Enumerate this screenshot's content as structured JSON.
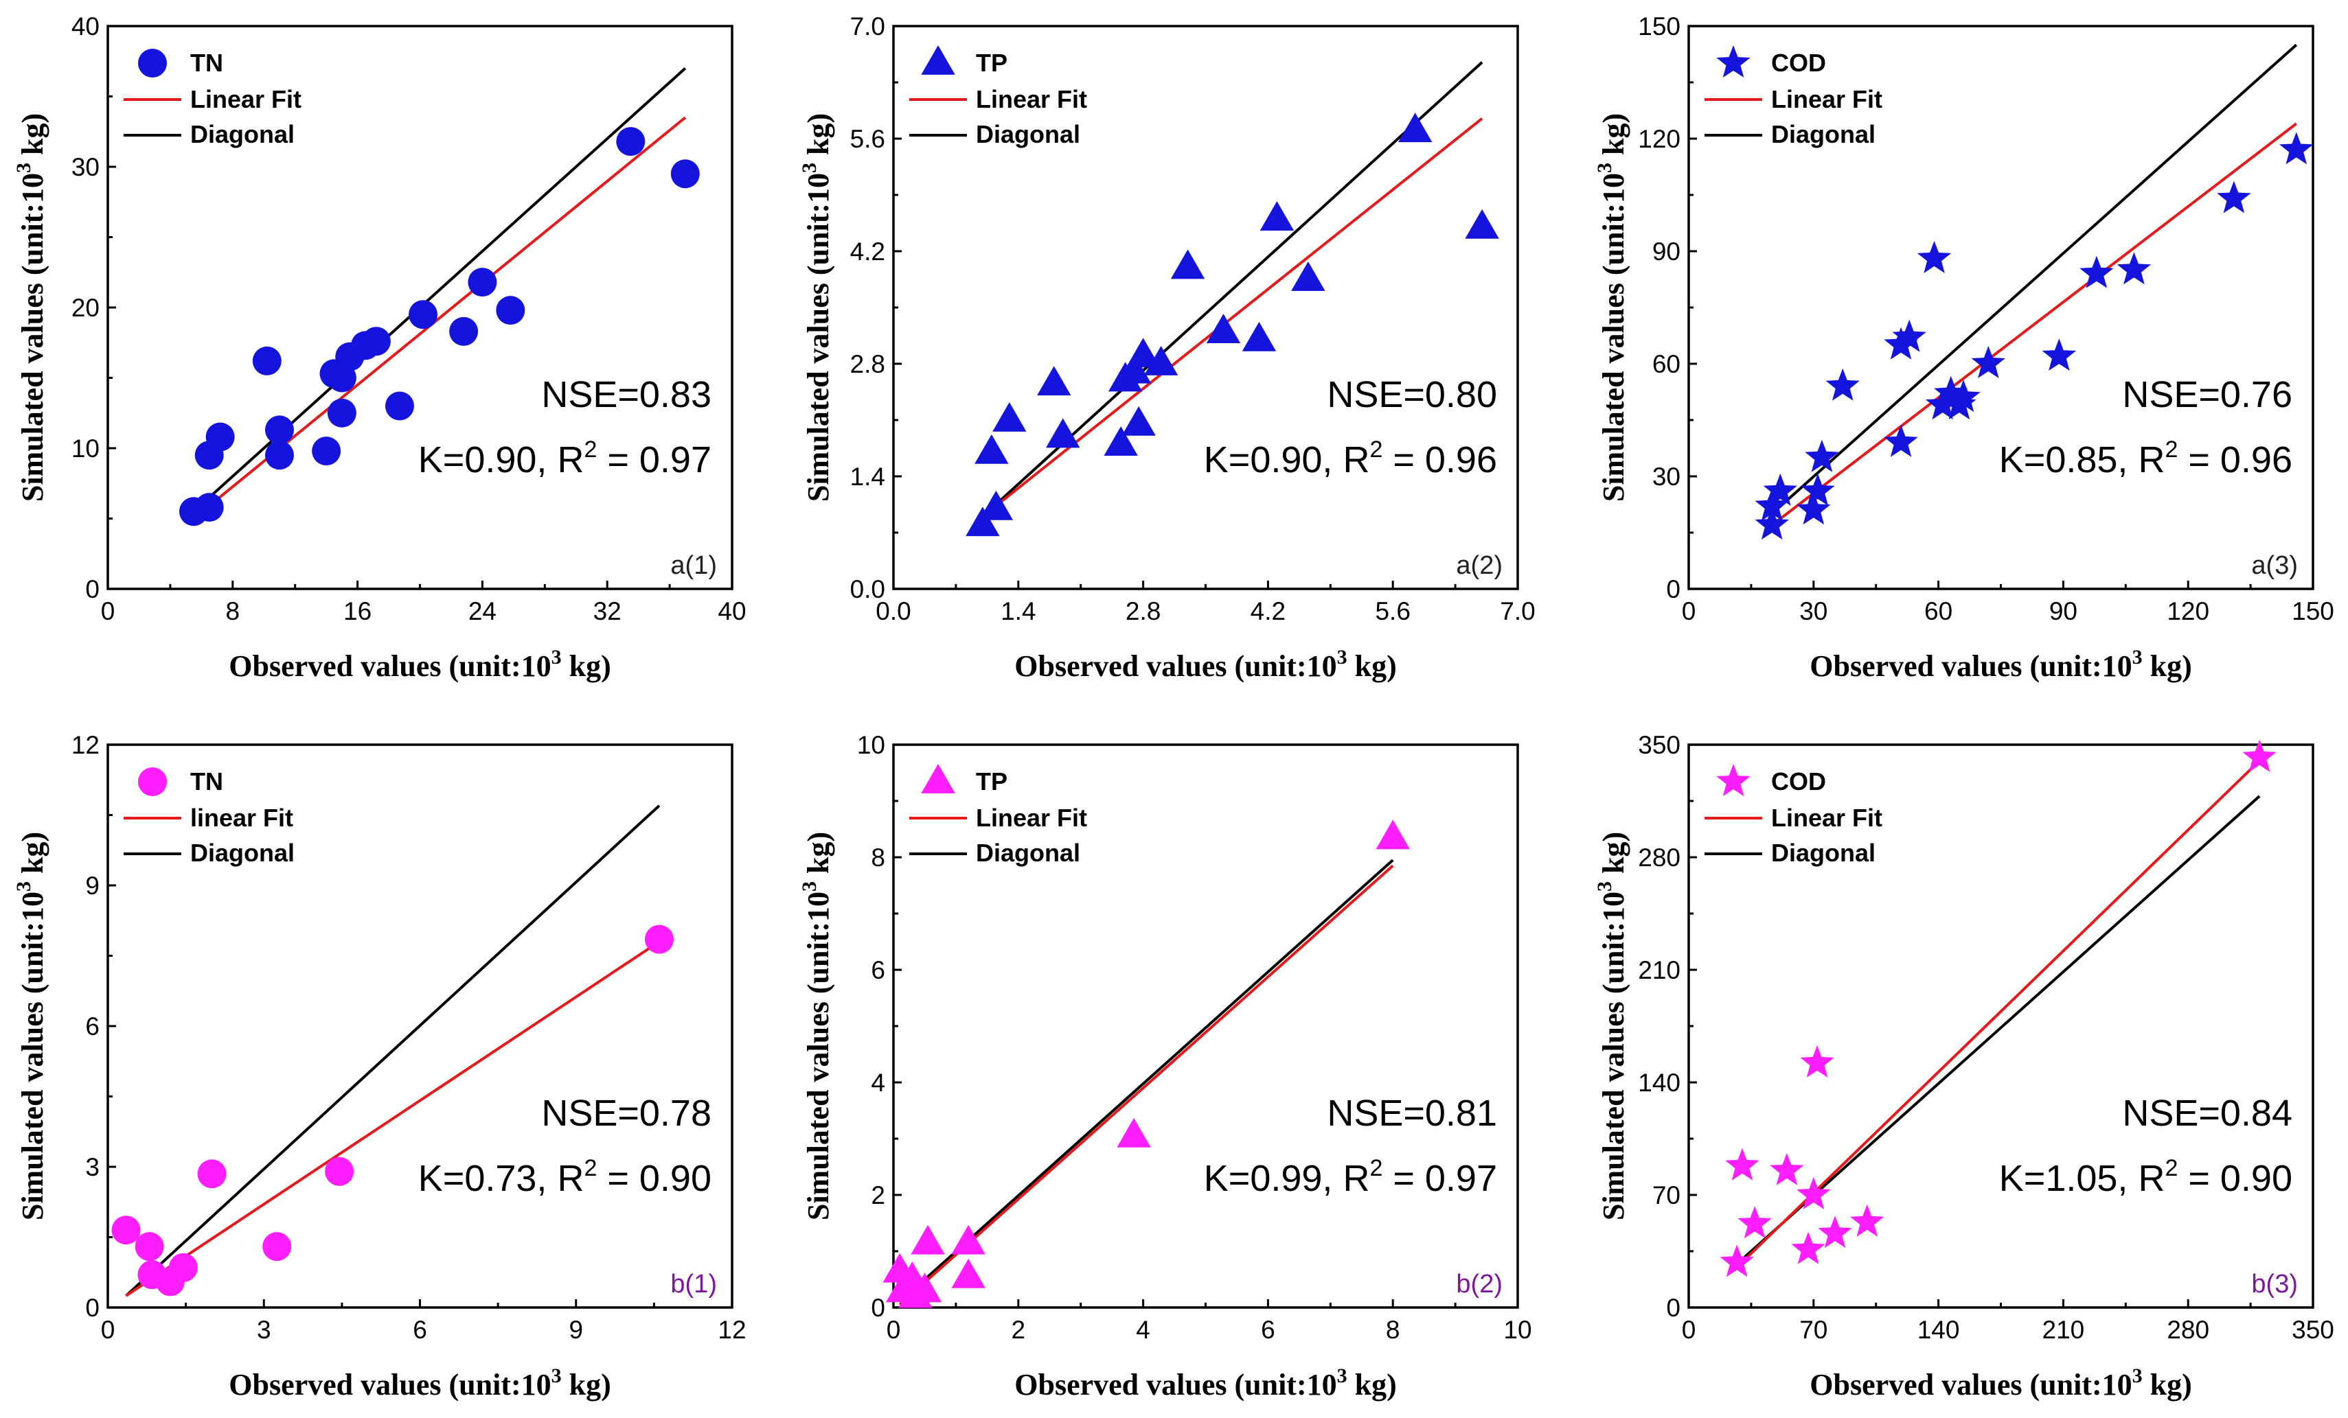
{
  "colors": {
    "blue": "#1414dc",
    "magenta": "#ff1eff",
    "fit": "#e41a1c",
    "diagonal": "#000000",
    "panel_label_b": "#7a1a9a"
  },
  "axis_text": {
    "x_prefix": "Observed values (unit:10",
    "y_prefix": "Simulated values (unit:10",
    "exp": "3",
    "suffix": " kg)"
  },
  "chart_data": [
    {
      "type": "scatter",
      "panel": "a(1)",
      "marker": "circle",
      "color": "blue",
      "xlim": [
        0,
        40
      ],
      "ylim": [
        0,
        40
      ],
      "xticks": [
        0,
        8,
        16,
        24,
        32,
        40
      ],
      "yticks": [
        0,
        10,
        20,
        30,
        40
      ],
      "legend": [
        "TN",
        "Linear Fit",
        "Diagonal"
      ],
      "nse": "NSE=0.83",
      "k_text": "K=0.90, R",
      "r2_sup": "2",
      "r2_text": " = 0.97",
      "points": [
        [
          5.5,
          5.5
        ],
        [
          6.5,
          5.8
        ],
        [
          6.5,
          9.5
        ],
        [
          7.2,
          10.8
        ],
        [
          10.2,
          16.2
        ],
        [
          11,
          11.3
        ],
        [
          11,
          9.5
        ],
        [
          14,
          9.8
        ],
        [
          14.5,
          15.3
        ],
        [
          15,
          12.5
        ],
        [
          15,
          15
        ],
        [
          15.5,
          16.5
        ],
        [
          16.5,
          17.3
        ],
        [
          17.2,
          17.6
        ],
        [
          18.7,
          13
        ],
        [
          20.2,
          19.5
        ],
        [
          22.8,
          18.3
        ],
        [
          24,
          21.8
        ],
        [
          25.8,
          19.8
        ],
        [
          33.5,
          31.8
        ],
        [
          37,
          29.5
        ]
      ],
      "fit": [
        [
          5.5,
          5
        ],
        [
          37,
          33.5
        ]
      ],
      "diag": [
        [
          5.5,
          5.5
        ],
        [
          37,
          37
        ]
      ]
    },
    {
      "type": "scatter",
      "panel": "a(2)",
      "marker": "triangle",
      "color": "blue",
      "xlim": [
        0,
        7
      ],
      "ylim": [
        0,
        7
      ],
      "xticks": [
        0,
        1.4,
        2.8,
        4.2,
        5.6,
        7
      ],
      "yticks": [
        0,
        1.4,
        2.8,
        4.2,
        5.6,
        7
      ],
      "xtick_labels": [
        "0.0",
        "1.4",
        "2.8",
        "4.2",
        "5.6",
        "7.0"
      ],
      "ytick_labels": [
        "0.0",
        "1.4",
        "2.8",
        "4.2",
        "5.6",
        "7.0"
      ],
      "legend": [
        "TP",
        "Linear Fit",
        "Diagonal"
      ],
      "nse": "NSE=0.80",
      "k_text": "K=0.90, R",
      "r2_sup": "2",
      "r2_text": " = 0.96",
      "points": [
        [
          1,
          0.8
        ],
        [
          1.1,
          1.7
        ],
        [
          1.15,
          1
        ],
        [
          1.3,
          2.1
        ],
        [
          1.8,
          2.55
        ],
        [
          1.9,
          1.9
        ],
        [
          2.55,
          1.8
        ],
        [
          2.6,
          2.6
        ],
        [
          2.7,
          2.7
        ],
        [
          2.75,
          2.05
        ],
        [
          2.8,
          2.9
        ],
        [
          3,
          2.8
        ],
        [
          3.3,
          4
        ],
        [
          3.7,
          3.2
        ],
        [
          4.1,
          3.1
        ],
        [
          4.3,
          4.6
        ],
        [
          4.65,
          3.85
        ],
        [
          5.85,
          5.7
        ],
        [
          6.6,
          4.5
        ]
      ],
      "fit": [
        [
          1,
          0.9
        ],
        [
          6.6,
          5.85
        ]
      ],
      "diag": [
        [
          1,
          0.9
        ],
        [
          6.6,
          6.55
        ]
      ]
    },
    {
      "type": "scatter",
      "panel": "a(3)",
      "marker": "star",
      "color": "blue",
      "xlim": [
        0,
        150
      ],
      "ylim": [
        0,
        150
      ],
      "xticks": [
        0,
        30,
        60,
        90,
        120,
        150
      ],
      "yticks": [
        0,
        30,
        60,
        90,
        120,
        150
      ],
      "legend": [
        "COD",
        "Linear Fit",
        "Diagonal"
      ],
      "nse": "NSE=0.76",
      "k_text": "K=0.85, R",
      "r2_sup": "2",
      "r2_text": " = 0.96",
      "points": [
        [
          20,
          17
        ],
        [
          20,
          22
        ],
        [
          22,
          26
        ],
        [
          30,
          21
        ],
        [
          31,
          26
        ],
        [
          32,
          35
        ],
        [
          37,
          54
        ],
        [
          51,
          65
        ],
        [
          51,
          39
        ],
        [
          53,
          67
        ],
        [
          59,
          88
        ],
        [
          61,
          49
        ],
        [
          63,
          52
        ],
        [
          65,
          49
        ],
        [
          66,
          51
        ],
        [
          72,
          60
        ],
        [
          89,
          62
        ],
        [
          98,
          84
        ],
        [
          107,
          85
        ],
        [
          131,
          104
        ],
        [
          146,
          117
        ]
      ],
      "fit": [
        [
          20,
          17
        ],
        [
          146,
          124
        ]
      ],
      "diag": [
        [
          20,
          20
        ],
        [
          146,
          145
        ]
      ]
    },
    {
      "type": "scatter",
      "panel": "b(1)",
      "marker": "circle",
      "color": "magenta",
      "xlim": [
        0,
        12
      ],
      "ylim": [
        0,
        12
      ],
      "xticks": [
        0,
        3,
        6,
        9,
        12
      ],
      "yticks": [
        0,
        3,
        6,
        9,
        12
      ],
      "legend": [
        "TN",
        "linear Fit",
        "Diagonal"
      ],
      "nse": "NSE=0.78",
      "k_text": "K=0.73, R",
      "r2_sup": "2",
      "r2_text": " = 0.90",
      "points": [
        [
          0.35,
          1.65
        ],
        [
          0.8,
          1.3
        ],
        [
          0.85,
          0.7
        ],
        [
          1.2,
          0.55
        ],
        [
          1.45,
          0.85
        ],
        [
          2,
          2.85
        ],
        [
          3.25,
          1.3
        ],
        [
          4.45,
          2.9
        ],
        [
          10.6,
          7.85
        ]
      ],
      "fit": [
        [
          0.35,
          0.25
        ],
        [
          10.6,
          7.8
        ]
      ],
      "diag": [
        [
          0.35,
          0.25
        ],
        [
          10.6,
          10.7
        ]
      ]
    },
    {
      "type": "scatter",
      "panel": "b(2)",
      "marker": "triangle",
      "color": "magenta",
      "xlim": [
        0,
        10
      ],
      "ylim": [
        0,
        10
      ],
      "xticks": [
        0,
        2,
        4,
        6,
        8,
        10
      ],
      "yticks": [
        0,
        2,
        4,
        6,
        8,
        10
      ],
      "legend": [
        "TP",
        "Linear Fit",
        "Diagonal"
      ],
      "nse": "NSE=0.81",
      "k_text": "K=0.99, R",
      "r2_sup": "2",
      "r2_text": " = 0.97",
      "points": [
        [
          0.1,
          0.65
        ],
        [
          0.15,
          0.3
        ],
        [
          0.3,
          0.5
        ],
        [
          0.35,
          0.2
        ],
        [
          0.5,
          0.3
        ],
        [
          0.55,
          1.15
        ],
        [
          1.2,
          1.15
        ],
        [
          1.2,
          0.55
        ],
        [
          3.85,
          3.05
        ],
        [
          8,
          8.35
        ]
      ],
      "fit": [
        [
          0.1,
          0.05
        ],
        [
          8,
          7.85
        ]
      ],
      "diag": [
        [
          0.1,
          0.1
        ],
        [
          8,
          7.95
        ]
      ]
    },
    {
      "type": "scatter",
      "panel": "b(3)",
      "marker": "star",
      "color": "magenta",
      "xlim": [
        0,
        350
      ],
      "ylim": [
        0,
        350
      ],
      "xticks": [
        0,
        70,
        140,
        210,
        280,
        350
      ],
      "yticks": [
        0,
        70,
        140,
        210,
        280,
        350
      ],
      "legend": [
        "COD",
        "Linear Fit",
        "Diagonal"
      ],
      "nse": "NSE=0.84",
      "k_text": "K=1.05, R",
      "r2_sup": "2",
      "r2_text": " = 0.90",
      "points": [
        [
          27,
          28
        ],
        [
          30,
          88
        ],
        [
          37,
          52
        ],
        [
          55,
          85
        ],
        [
          67,
          36
        ],
        [
          70,
          70
        ],
        [
          72,
          152
        ],
        [
          82,
          46
        ],
        [
          100,
          53
        ],
        [
          320,
          342
        ]
      ],
      "fit": [
        [
          27,
          25
        ],
        [
          320,
          340
        ]
      ],
      "diag": [
        [
          27,
          27
        ],
        [
          320,
          318
        ]
      ]
    }
  ]
}
